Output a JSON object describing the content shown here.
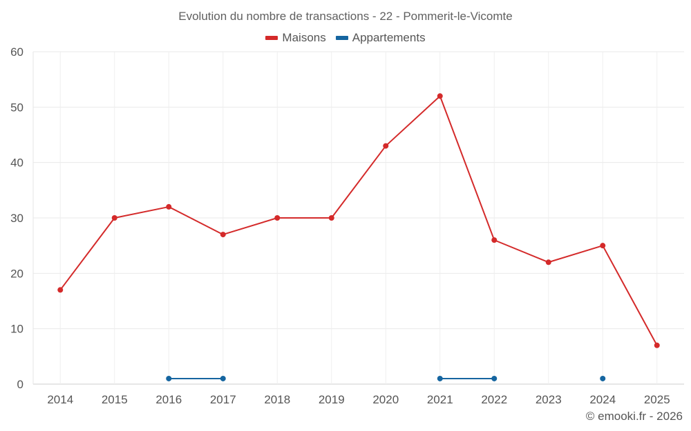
{
  "chart_data": {
    "type": "line",
    "title": "Evolution du nombre de transactions - 22 - Pommerit-le-Vicomte",
    "categories": [
      "2014",
      "2015",
      "2016",
      "2017",
      "2018",
      "2019",
      "2020",
      "2021",
      "2022",
      "2023",
      "2024",
      "2025"
    ],
    "ylim": [
      0,
      60
    ],
    "yticks": [
      "0",
      "10",
      "20",
      "30",
      "40",
      "50",
      "60"
    ],
    "grid": true,
    "legend_position": "top-center",
    "series": [
      {
        "name": "Maisons",
        "color": "#d42a2a",
        "values": [
          17,
          30,
          32,
          27,
          30,
          30,
          43,
          52,
          26,
          22,
          25,
          7
        ]
      },
      {
        "name": "Appartements",
        "color": "#1565a0",
        "values": [
          null,
          null,
          1,
          1,
          null,
          null,
          null,
          1,
          1,
          null,
          1,
          null
        ]
      }
    ]
  },
  "footer": {
    "copyright": "© emooki.fr - 2026"
  }
}
